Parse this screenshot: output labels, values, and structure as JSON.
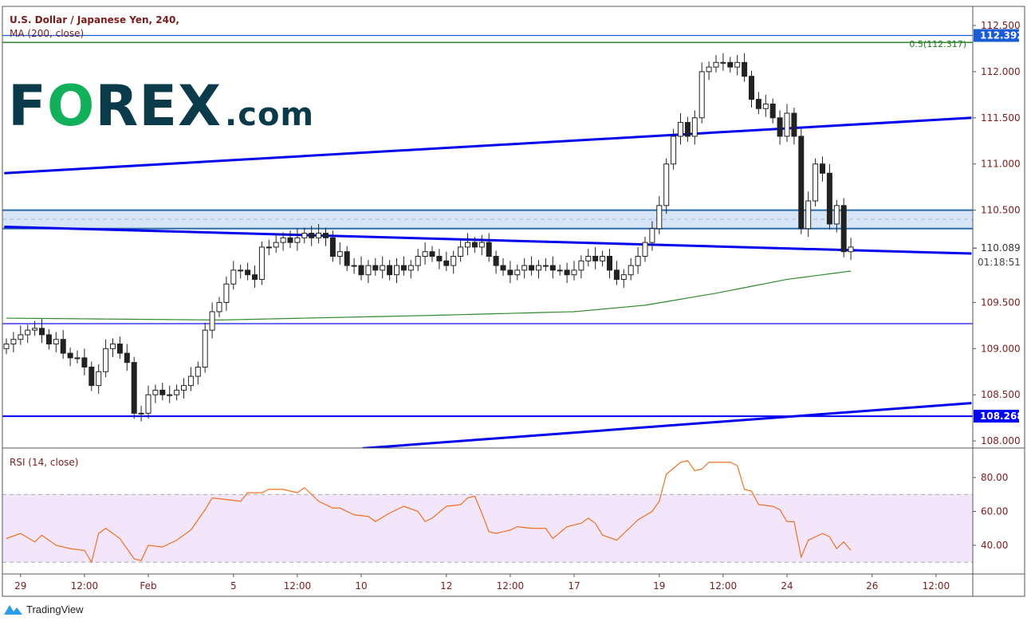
{
  "header": {
    "title": "U.S. Dollar / Japanese Yen, 240,",
    "indicator": "MA (200, close)"
  },
  "logo": {
    "text_main_1": "F",
    "text_o": "O",
    "text_main_2": "REX",
    "text_domain": ".com",
    "colors": {
      "main": "#0b3a4b",
      "o": "#12b05a"
    }
  },
  "footer": {
    "brand": "TradingView"
  },
  "chart_data": [
    {
      "type": "candlestick",
      "title": "U.S. Dollar / Japanese Yen, 240,",
      "price_ticks": [
        "112.500",
        "112.000",
        "111.500",
        "111.000",
        "110.500",
        "109.500",
        "109.000",
        "108.500",
        "108.000"
      ],
      "ylim": [
        107.9,
        112.7
      ],
      "x_tick_labels": [
        {
          "label": "29",
          "candle": 2
        },
        {
          "label": "12:00",
          "candle": 11
        },
        {
          "label": "Feb",
          "candle": 20
        },
        {
          "label": "5",
          "candle": 32
        },
        {
          "label": "12:00",
          "candle": 41
        },
        {
          "label": "10",
          "candle": 50
        },
        {
          "label": "12",
          "candle": 62
        },
        {
          "label": "12:00",
          "candle": 71
        },
        {
          "label": "17",
          "candle": 80
        },
        {
          "label": "19",
          "candle": 92
        },
        {
          "label": "12:00",
          "candle": 101
        },
        {
          "label": "24",
          "candle": 110
        },
        {
          "label": "26",
          "candle": 122
        },
        {
          "label": "12:00",
          "candle": 131
        }
      ],
      "closes": [
        109.05,
        109.1,
        109.15,
        109.2,
        109.22,
        109.15,
        109.05,
        109.1,
        108.95,
        108.9,
        108.9,
        108.8,
        108.6,
        108.75,
        109.0,
        109.05,
        108.95,
        108.85,
        108.3,
        108.3,
        108.5,
        108.55,
        108.5,
        108.5,
        108.55,
        108.6,
        108.7,
        108.8,
        109.2,
        109.4,
        109.5,
        109.7,
        109.85,
        109.85,
        109.8,
        109.75,
        110.1,
        110.1,
        110.15,
        110.2,
        110.15,
        110.2,
        110.25,
        110.2,
        110.25,
        110.2,
        110.0,
        110.05,
        109.9,
        109.9,
        109.8,
        109.9,
        109.85,
        109.9,
        109.8,
        109.9,
        109.85,
        109.9,
        110.0,
        110.05,
        110.0,
        109.95,
        109.9,
        110.0,
        110.1,
        110.15,
        110.1,
        110.15,
        110.0,
        109.9,
        109.85,
        109.8,
        109.85,
        109.9,
        109.85,
        109.9,
        109.9,
        109.85,
        109.85,
        109.8,
        109.85,
        109.95,
        110.0,
        109.95,
        110.0,
        109.85,
        109.75,
        109.8,
        109.9,
        110.0,
        110.15,
        110.3,
        110.55,
        111.0,
        111.3,
        111.45,
        111.3,
        111.5,
        112.0,
        112.05,
        112.1,
        112.1,
        112.05,
        112.1,
        111.95,
        111.7,
        111.6,
        111.65,
        111.5,
        111.3,
        111.55,
        111.3,
        110.3,
        110.6,
        111.0,
        110.9,
        110.35,
        110.55,
        110.05,
        110.1
      ],
      "ma200": {
        "name": "MA (200, close)",
        "color": "#2e8b2e",
        "anchors": [
          [
            0,
            109.33
          ],
          [
            30,
            109.31
          ],
          [
            60,
            109.36
          ],
          [
            80,
            109.4
          ],
          [
            90,
            109.47
          ],
          [
            100,
            109.6
          ],
          [
            110,
            109.75
          ],
          [
            119,
            109.84
          ]
        ]
      },
      "horizontal_lines": [
        {
          "price": 112.392,
          "color": "#1a5bd6",
          "label": "112.392"
        },
        {
          "price": 112.317,
          "color": "#1e7a1e",
          "label": "0.5(112.317)"
        },
        {
          "price": 109.27,
          "color": "#1010ee"
        },
        {
          "price": 108.268,
          "color": "#0000ff",
          "label": "108.268"
        }
      ],
      "zone": {
        "top": 110.5,
        "bottom": 110.3,
        "mid": 110.4,
        "fill": "#d6e6f7",
        "border": "#2d6aa8"
      },
      "trend_lines": [
        {
          "from": [
            -0.3,
            110.9
          ],
          "to": [
            136,
            111.5
          ],
          "color": "#0000ee"
        },
        {
          "from": [
            -0.3,
            110.32
          ],
          "to": [
            136,
            110.03
          ],
          "color": "#0000ee"
        },
        {
          "from": [
            50.2,
            107.92
          ],
          "to": [
            136,
            108.41
          ],
          "color": "#0000ee"
        }
      ],
      "last_price": {
        "label": "110.089",
        "countdown": "01:18:51"
      },
      "colors": {
        "up": "#ffffff",
        "down": "#222222",
        "axis_text": "#7a1c1c"
      }
    },
    {
      "type": "line",
      "title": "RSI (14, close)",
      "y_ticks": [
        "80.00",
        "60.00",
        "40.00"
      ],
      "ylim": [
        22,
        95
      ],
      "band": [
        30,
        70
      ],
      "band_color": "#f3e6fb",
      "line_color": "#f07020",
      "points": [
        [
          0,
          44
        ],
        [
          2,
          47
        ],
        [
          4,
          42
        ],
        [
          5,
          46
        ],
        [
          7,
          40
        ],
        [
          9,
          38
        ],
        [
          11,
          37
        ],
        [
          12,
          30
        ],
        [
          13,
          47
        ],
        [
          14,
          50
        ],
        [
          16,
          44
        ],
        [
          18,
          32
        ],
        [
          19,
          31
        ],
        [
          20,
          40
        ],
        [
          22,
          39
        ],
        [
          24,
          43
        ],
        [
          26,
          49
        ],
        [
          28,
          61
        ],
        [
          29,
          68
        ],
        [
          31,
          67
        ],
        [
          33,
          66
        ],
        [
          34,
          71
        ],
        [
          36,
          71
        ],
        [
          37,
          73
        ],
        [
          39,
          73
        ],
        [
          41,
          71
        ],
        [
          42,
          74
        ],
        [
          44,
          66
        ],
        [
          46,
          62
        ],
        [
          47,
          62
        ],
        [
          49,
          58
        ],
        [
          51,
          57
        ],
        [
          52,
          54
        ],
        [
          54,
          59
        ],
        [
          56,
          63
        ],
        [
          58,
          60
        ],
        [
          59,
          54
        ],
        [
          60,
          56
        ],
        [
          62,
          63
        ],
        [
          64,
          64
        ],
        [
          65,
          68
        ],
        [
          66,
          69
        ],
        [
          67,
          59
        ],
        [
          68,
          48
        ],
        [
          69,
          47
        ],
        [
          71,
          49
        ],
        [
          72,
          51
        ],
        [
          74,
          50
        ],
        [
          76,
          50
        ],
        [
          77,
          44
        ],
        [
          79,
          51
        ],
        [
          81,
          53
        ],
        [
          82,
          56
        ],
        [
          83,
          53
        ],
        [
          84,
          46
        ],
        [
          86,
          43
        ],
        [
          88,
          51
        ],
        [
          89,
          55
        ],
        [
          91,
          60
        ],
        [
          92,
          66
        ],
        [
          93,
          82
        ],
        [
          95,
          89
        ],
        [
          96,
          90
        ],
        [
          97,
          84
        ],
        [
          98,
          85
        ],
        [
          99,
          89
        ],
        [
          101,
          89
        ],
        [
          102,
          89
        ],
        [
          103,
          87
        ],
        [
          104,
          73
        ],
        [
          105,
          72
        ],
        [
          106,
          64
        ],
        [
          108,
          63
        ],
        [
          109,
          61
        ],
        [
          110,
          54
        ],
        [
          111,
          54
        ],
        [
          112,
          33
        ],
        [
          113,
          43
        ],
        [
          115,
          47
        ],
        [
          116,
          45
        ],
        [
          117,
          38
        ],
        [
          118,
          42
        ],
        [
          119,
          37
        ]
      ]
    }
  ]
}
